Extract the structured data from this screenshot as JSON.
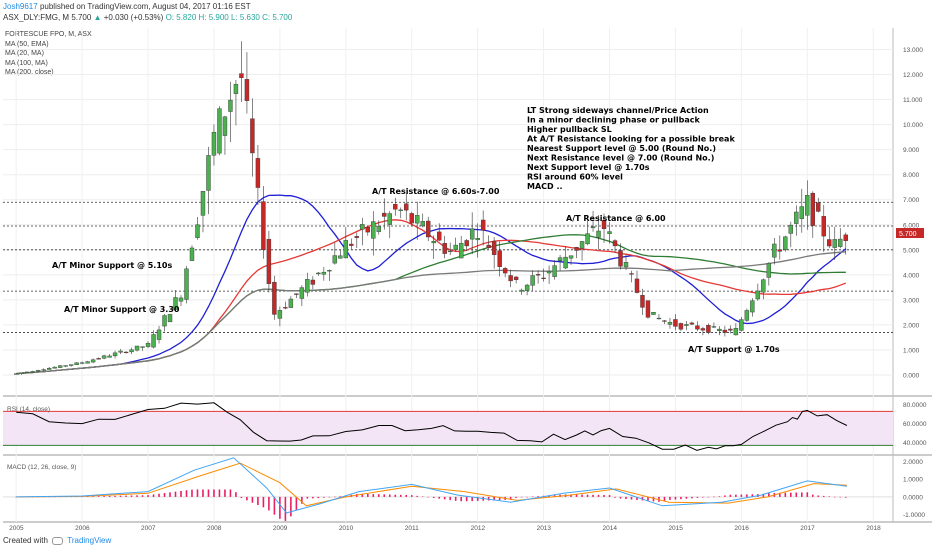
{
  "header": {
    "user": "Josh9617",
    "published": "published on TradingView.com, August 04, 2017 01:16 EST",
    "symbol_line": "ASX_DLY:FMG, M 5.700",
    "change": "+0.030 (+0.53%)",
    "ohlc": "O: 5.820 H: 5.900 L: 5.630 C: 5.700"
  },
  "legend": {
    "title": "FORTESCUE FPO, M, ASX",
    "ma1": "MA (50, EMA)",
    "ma2": "MA (20, MA)",
    "ma3": "MA (100, MA)",
    "ma4": "MA (200, close)"
  },
  "rsi_label": "RSI (14, close)",
  "macd_label": "MACD (12, 26, close, 9)",
  "footer": {
    "created": "Created with",
    "brand": "TradingView"
  },
  "annotations": {
    "notes": [
      "LT Strong sideways channel/Price Action",
      "In a minor declining phase or pullback",
      "Higher pullback SL",
      "At A/T Resistance looking for a possible break",
      "Nearest Support level @ 5.00 (Round No.)",
      "Next Resistance level @ 7.00 (Round No.)",
      "Next Support level @ 1.70s",
      "RSI around 60% level",
      "MACD .."
    ],
    "res1": "A/T Resistance @ 6.60s-7.00",
    "res2": "A/T Resistance @ 6.00",
    "sup1": "A/T Minor Support @ 5.10s",
    "sup2": "A/T Minor Support @ 3.30",
    "sup3": "A/T Support @ 1.70s"
  },
  "colors": {
    "up": "#26a69a",
    "up_fill": "#4caf50",
    "down": "#c62828",
    "ma_blue": "#1f1fd6",
    "ma_red": "#e53935",
    "ma_green": "#2e7d32",
    "ma_gray": "#7a7a7a",
    "rsi_band": "#f3e5f5",
    "rsi_line": "#000000",
    "macd_line": "#42a5f5",
    "signal_line": "#fb8c00",
    "hist": "#e91e63"
  },
  "chart_data": [
    {
      "type": "candlestick",
      "title": "FORTESCUE FPO, M, ASX",
      "x_ticks": [
        "2005",
        "2006",
        "2007",
        "2008",
        "2009",
        "2010",
        "2011",
        "2012",
        "2013",
        "2014",
        "2015",
        "2016",
        "2017",
        "2018"
      ],
      "y_ticks": [
        "0.000",
        "1.000",
        "2.000",
        "3.000",
        "4.000",
        "5.000",
        "6.000",
        "7.000",
        "8.000",
        "9.000",
        "10.000",
        "11.000",
        "12.000",
        "13.000"
      ],
      "ylim": [
        -0.4,
        13.7
      ],
      "current_price": "5.700",
      "support_resistance_levels": [
        6.9,
        5.95,
        5.0,
        3.35,
        1.7
      ],
      "yearly_price_path": [
        {
          "x": "2005",
          "close": 0.05
        },
        {
          "x": "2006",
          "close": 0.5
        },
        {
          "x": "2007",
          "close": 1.2
        },
        {
          "x": "2007.5",
          "close": 3.3
        },
        {
          "x": "2008.0",
          "close": 9.5
        },
        {
          "x": "2008.4",
          "close": 12.2
        },
        {
          "x": "2008.9",
          "close": 2.4
        },
        {
          "x": "2009.5",
          "close": 3.8
        },
        {
          "x": "2010",
          "close": 5.2
        },
        {
          "x": "2010.8",
          "close": 6.6
        },
        {
          "x": "2011.6",
          "close": 4.9
        },
        {
          "x": "2012",
          "close": 5.9
        },
        {
          "x": "2012.6",
          "close": 3.5
        },
        {
          "x": "2013",
          "close": 4.0
        },
        {
          "x": "2013.9",
          "close": 6.0
        },
        {
          "x": "2014.6",
          "close": 2.4
        },
        {
          "x": "2015",
          "close": 2.0
        },
        {
          "x": "2015.9",
          "close": 1.7
        },
        {
          "x": "2016.5",
          "close": 4.9
        },
        {
          "x": "2017",
          "close": 6.8
        },
        {
          "x": "2017.4",
          "close": 5.1
        },
        {
          "x": "2017.6",
          "close": 5.7
        }
      ],
      "series": [
        {
          "name": "MA (50, EMA)"
        },
        {
          "name": "MA (20, MA)"
        },
        {
          "name": "MA (100, MA)"
        },
        {
          "name": "MA (200, close)"
        }
      ]
    },
    {
      "type": "line",
      "title": "RSI (14, close)",
      "y_ticks": [
        "40.0000",
        "60.0000",
        "80.0000"
      ],
      "ylim": [
        30,
        85
      ],
      "bands": [
        37,
        73
      ],
      "values_by_year": [
        {
          "x": "2005",
          "y": 72
        },
        {
          "x": "2006",
          "y": 60
        },
        {
          "x": "2007",
          "y": 75
        },
        {
          "x": "2008",
          "y": 82
        },
        {
          "x": "2008.8",
          "y": 42
        },
        {
          "x": "2009.5",
          "y": 47
        },
        {
          "x": "2010.5",
          "y": 58
        },
        {
          "x": "2011.3",
          "y": 55
        },
        {
          "x": "2012",
          "y": 52
        },
        {
          "x": "2012.8",
          "y": 42
        },
        {
          "x": "2013.5",
          "y": 48
        },
        {
          "x": "2014",
          "y": 55
        },
        {
          "x": "2014.8",
          "y": 33
        },
        {
          "x": "2015.5",
          "y": 35
        },
        {
          "x": "2016",
          "y": 38
        },
        {
          "x": "2016.7",
          "y": 62
        },
        {
          "x": "2017",
          "y": 74
        },
        {
          "x": "2017.6",
          "y": 58
        }
      ]
    },
    {
      "type": "bar",
      "title": "MACD (12, 26, close, 9)",
      "y_ticks": [
        "-1.0000",
        "0.0000",
        "1.0000",
        "2.0000"
      ],
      "ylim": [
        -1.3,
        2.3
      ],
      "series": [
        {
          "name": "MACD",
          "values_by_year": [
            [
              2005,
              0
            ],
            [
              2006,
              0.05
            ],
            [
              2007,
              0.3
            ],
            [
              2007.7,
              1.5
            ],
            [
              2008.3,
              2.2
            ],
            [
              2008.8,
              0.5
            ],
            [
              2009.1,
              -0.9
            ],
            [
              2009.6,
              -0.4
            ],
            [
              2010.2,
              0.3
            ],
            [
              2011,
              0.7
            ],
            [
              2011.7,
              0.1
            ],
            [
              2012.5,
              -0.3
            ],
            [
              2013.3,
              0.2
            ],
            [
              2014,
              0.5
            ],
            [
              2014.8,
              -0.5
            ],
            [
              2015.7,
              -0.3
            ],
            [
              2016.3,
              0.1
            ],
            [
              2017,
              0.9
            ],
            [
              2017.6,
              0.6
            ]
          ]
        },
        {
          "name": "Signal",
          "values_by_year": [
            [
              2005,
              0
            ],
            [
              2006,
              0.03
            ],
            [
              2007,
              0.2
            ],
            [
              2007.8,
              1.2
            ],
            [
              2008.4,
              1.9
            ],
            [
              2009.0,
              0.8
            ],
            [
              2009.4,
              -0.5
            ],
            [
              2010.0,
              0.0
            ],
            [
              2011,
              0.6
            ],
            [
              2011.8,
              0.3
            ],
            [
              2012.6,
              -0.2
            ],
            [
              2013.4,
              0.1
            ],
            [
              2014.1,
              0.45
            ],
            [
              2014.9,
              -0.3
            ],
            [
              2015.8,
              -0.35
            ],
            [
              2016.4,
              0.0
            ],
            [
              2017.1,
              0.75
            ],
            [
              2017.6,
              0.65
            ]
          ]
        }
      ]
    }
  ]
}
